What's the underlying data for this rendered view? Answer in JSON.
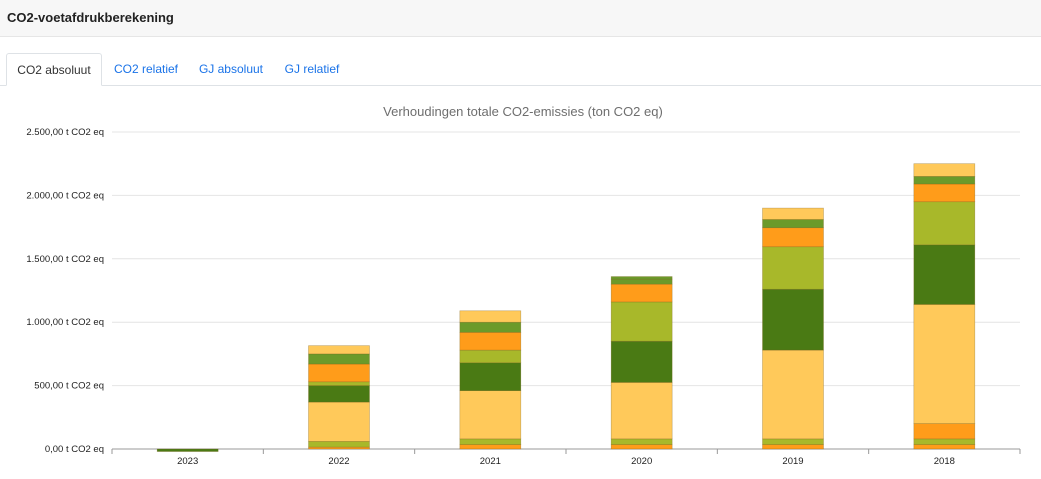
{
  "header": {
    "title": "CO2-voetafdrukberekening"
  },
  "tabs": [
    {
      "label": "CO2 absoluut",
      "active": true
    },
    {
      "label": "CO2 relatief",
      "active": false
    },
    {
      "label": "GJ absoluut",
      "active": false
    },
    {
      "label": "GJ relatief",
      "active": false
    }
  ],
  "colors": {
    "light_orange": "#ffc95a",
    "orange": "#ff9c1a",
    "olive": "#a8b82a",
    "dark_green": "#4a7a14",
    "green": "#6b9a2a",
    "tab_link": "#1a73e8"
  },
  "chart_data": {
    "type": "bar",
    "stacked": true,
    "title": "Verhoudingen totale CO2-emissies (ton CO2 eq)",
    "categories": [
      "2023",
      "2022",
      "2021",
      "2020",
      "2019",
      "2018"
    ],
    "ylim": [
      0,
      2500
    ],
    "yticks": [
      "0,00 t CO2 eq",
      "500,00 t CO2 eq",
      "1.000,00 t CO2 eq",
      "1.500,00 t CO2 eq",
      "2.000,00 t CO2 eq",
      "2.500,00 t CO2 eq"
    ],
    "grid": true,
    "segments": [
      [
        {
          "value": -20,
          "color": "dark_green"
        }
      ],
      [
        {
          "value": 15,
          "color": "orange"
        },
        {
          "value": 45,
          "color": "olive"
        },
        {
          "value": 310,
          "color": "light_orange"
        },
        {
          "value": 130,
          "color": "dark_green"
        },
        {
          "value": 30,
          "color": "olive"
        },
        {
          "value": 140,
          "color": "orange"
        },
        {
          "value": 80,
          "color": "green"
        },
        {
          "value": 65,
          "color": "light_orange"
        }
      ],
      [
        {
          "value": 35,
          "color": "orange"
        },
        {
          "value": 45,
          "color": "olive"
        },
        {
          "value": 380,
          "color": "light_orange"
        },
        {
          "value": 220,
          "color": "dark_green"
        },
        {
          "value": 100,
          "color": "olive"
        },
        {
          "value": 140,
          "color": "orange"
        },
        {
          "value": 80,
          "color": "green"
        },
        {
          "value": 90,
          "color": "light_orange"
        }
      ],
      [
        {
          "value": 35,
          "color": "orange"
        },
        {
          "value": 45,
          "color": "olive"
        },
        {
          "value": 445,
          "color": "light_orange"
        },
        {
          "value": 325,
          "color": "dark_green"
        },
        {
          "value": 310,
          "color": "olive"
        },
        {
          "value": 140,
          "color": "orange"
        },
        {
          "value": 40,
          "color": "green"
        },
        {
          "value": 20,
          "color": "green"
        }
      ],
      [
        {
          "value": 35,
          "color": "orange"
        },
        {
          "value": 45,
          "color": "olive"
        },
        {
          "value": 700,
          "color": "light_orange"
        },
        {
          "value": 480,
          "color": "dark_green"
        },
        {
          "value": 335,
          "color": "olive"
        },
        {
          "value": 150,
          "color": "orange"
        },
        {
          "value": 65,
          "color": "green"
        },
        {
          "value": 90,
          "color": "light_orange"
        }
      ],
      [
        {
          "value": 35,
          "color": "orange"
        },
        {
          "value": 45,
          "color": "olive"
        },
        {
          "value": 120,
          "color": "orange"
        },
        {
          "value": 940,
          "color": "light_orange"
        },
        {
          "value": 470,
          "color": "dark_green"
        },
        {
          "value": 340,
          "color": "olive"
        },
        {
          "value": 140,
          "color": "orange"
        },
        {
          "value": 60,
          "color": "green"
        },
        {
          "value": 100,
          "color": "light_orange"
        }
      ]
    ]
  }
}
